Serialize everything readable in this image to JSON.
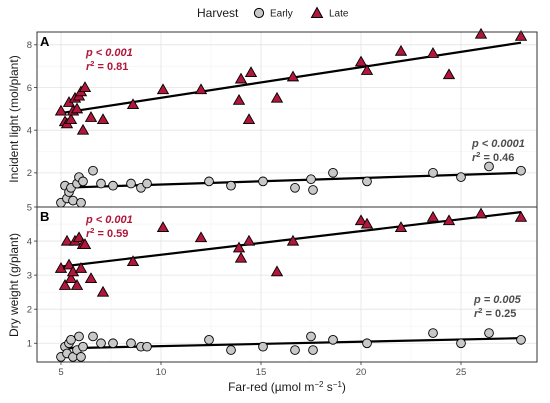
{
  "chart_data": {
    "type": "scatter",
    "legend": {
      "title": "Harvest",
      "placement": "top-center",
      "entries": [
        {
          "label": "Early",
          "shape": "circle",
          "color": "#c8c8c8"
        },
        {
          "label": "Late",
          "shape": "triangle",
          "color": "#b0173a"
        }
      ]
    },
    "xlabel_base": "Far-red (µmol m",
    "xlabel_exp1": "−2",
    "xlabel_mid": " s",
    "xlabel_exp2": "−1",
    "xlabel_end": ")",
    "xlim": [
      3.8,
      28.8
    ],
    "xticks": [
      5,
      10,
      15,
      20,
      25
    ],
    "xtick_labels": [
      "5",
      "10",
      "15",
      "20",
      "25"
    ],
    "grid": true,
    "panels": [
      {
        "tag": "A",
        "ylabel": "Incident light (mol/plant)",
        "ylim": [
          0.4,
          8.6
        ],
        "yticks": [
          2,
          4,
          6,
          8
        ],
        "ytick_labels": [
          "2",
          "4",
          "6",
          "8"
        ],
        "series": [
          {
            "name": "Early",
            "points": [
              [
                5.0,
                0.6
              ],
              [
                5.2,
                1.4
              ],
              [
                5.3,
                0.8
              ],
              [
                5.4,
                1.1
              ],
              [
                5.5,
                1.3
              ],
              [
                5.6,
                0.7
              ],
              [
                5.8,
                1.5
              ],
              [
                5.9,
                1.8
              ],
              [
                6.0,
                0.6
              ],
              [
                6.1,
                1.6
              ],
              [
                6.6,
                2.1
              ],
              [
                7.0,
                1.5
              ],
              [
                7.6,
                1.4
              ],
              [
                8.5,
                1.5
              ],
              [
                9.0,
                1.3
              ],
              [
                9.3,
                1.5
              ],
              [
                12.4,
                1.6
              ],
              [
                13.5,
                1.4
              ],
              [
                15.1,
                1.6
              ],
              [
                16.7,
                1.3
              ],
              [
                17.5,
                1.7
              ],
              [
                17.6,
                1.2
              ],
              [
                18.6,
                2.0
              ],
              [
                20.3,
                1.6
              ],
              [
                23.6,
                2.0
              ],
              [
                25.0,
                1.8
              ],
              [
                26.4,
                2.3
              ],
              [
                28.0,
                2.1
              ]
            ],
            "fit": {
              "x": [
                5.0,
                28.0
              ],
              "y": [
                1.3,
                2.0
              ]
            },
            "annotation": {
              "p": "p < 0.0001",
              "r2_prefix": "r",
              "r2_exp": "2",
              "r2_value": " = 0.46"
            }
          },
          {
            "name": "Late",
            "points": [
              [
                5.0,
                4.9
              ],
              [
                5.2,
                4.4
              ],
              [
                5.3,
                4.3
              ],
              [
                5.4,
                5.3
              ],
              [
                5.5,
                4.5
              ],
              [
                5.6,
                4.9
              ],
              [
                5.7,
                5.5
              ],
              [
                5.8,
                5.0
              ],
              [
                5.9,
                5.6
              ],
              [
                6.0,
                5.8
              ],
              [
                6.1,
                4.0
              ],
              [
                6.2,
                6.0
              ],
              [
                6.5,
                4.6
              ],
              [
                7.1,
                4.5
              ],
              [
                8.6,
                5.2
              ],
              [
                10.1,
                5.9
              ],
              [
                12.0,
                5.9
              ],
              [
                13.9,
                5.4
              ],
              [
                14.0,
                6.4
              ],
              [
                14.4,
                4.5
              ],
              [
                14.5,
                6.7
              ],
              [
                15.8,
                5.5
              ],
              [
                16.6,
                6.5
              ],
              [
                20.0,
                7.2
              ],
              [
                20.3,
                6.8
              ],
              [
                22.0,
                7.7
              ],
              [
                23.6,
                7.6
              ],
              [
                24.4,
                6.6
              ],
              [
                26.0,
                8.5
              ],
              [
                28.0,
                8.4
              ]
            ],
            "fit": {
              "x": [
                5.0,
                28.0
              ],
              "y": [
                4.8,
                8.1
              ]
            },
            "annotation": {
              "p": "p < 0.001",
              "r2_prefix": "r",
              "r2_exp": "2",
              "r2_value": " = 0.81"
            }
          }
        ]
      },
      {
        "tag": "B",
        "ylabel": "Dry weight (g/plant)",
        "ylim": [
          0.45,
          5.0
        ],
        "yticks": [
          1,
          2,
          3,
          4,
          5
        ],
        "ytick_labels": [
          "1",
          "2",
          "3",
          "4",
          "5"
        ],
        "series": [
          {
            "name": "Early",
            "points": [
              [
                5.0,
                0.6
              ],
              [
                5.2,
                0.9
              ],
              [
                5.3,
                0.7
              ],
              [
                5.4,
                1.0
              ],
              [
                5.5,
                1.1
              ],
              [
                5.6,
                0.6
              ],
              [
                5.8,
                0.8
              ],
              [
                5.9,
                1.2
              ],
              [
                6.0,
                0.6
              ],
              [
                6.1,
                0.9
              ],
              [
                6.6,
                1.2
              ],
              [
                7.0,
                1.0
              ],
              [
                7.6,
                1.0
              ],
              [
                8.5,
                1.0
              ],
              [
                9.0,
                0.9
              ],
              [
                9.3,
                0.9
              ],
              [
                12.4,
                1.1
              ],
              [
                13.5,
                0.8
              ],
              [
                15.1,
                0.9
              ],
              [
                16.7,
                0.8
              ],
              [
                17.5,
                1.2
              ],
              [
                17.6,
                0.8
              ],
              [
                18.6,
                1.1
              ],
              [
                20.3,
                1.0
              ],
              [
                23.6,
                1.3
              ],
              [
                25.0,
                1.0
              ],
              [
                26.4,
                1.3
              ],
              [
                28.0,
                1.1
              ]
            ],
            "fit": {
              "x": [
                5.0,
                28.0
              ],
              "y": [
                0.85,
                1.15
              ]
            },
            "annotation": {
              "p": "p = 0.005",
              "r2_prefix": "r",
              "r2_exp": "2",
              "r2_value": " = 0.25"
            }
          },
          {
            "name": "Late",
            "points": [
              [
                5.0,
                3.2
              ],
              [
                5.2,
                2.7
              ],
              [
                5.3,
                4.0
              ],
              [
                5.4,
                3.3
              ],
              [
                5.5,
                2.9
              ],
              [
                5.6,
                3.1
              ],
              [
                5.7,
                4.0
              ],
              [
                5.8,
                2.7
              ],
              [
                5.9,
                4.1
              ],
              [
                6.0,
                3.2
              ],
              [
                6.1,
                3.9
              ],
              [
                6.2,
                3.9
              ],
              [
                6.5,
                2.9
              ],
              [
                7.1,
                2.5
              ],
              [
                8.6,
                3.4
              ],
              [
                10.1,
                4.4
              ],
              [
                12.0,
                4.1
              ],
              [
                13.9,
                3.8
              ],
              [
                14.0,
                3.5
              ],
              [
                14.4,
                4.0
              ],
              [
                15.8,
                3.1
              ],
              [
                16.6,
                4.0
              ],
              [
                20.0,
                4.6
              ],
              [
                20.3,
                4.5
              ],
              [
                22.0,
                4.4
              ],
              [
                23.6,
                4.7
              ],
              [
                24.4,
                4.6
              ],
              [
                26.0,
                4.8
              ],
              [
                28.0,
                4.7
              ]
            ],
            "fit": {
              "x": [
                5.0,
                28.0
              ],
              "y": [
                3.25,
                4.85
              ]
            },
            "annotation": {
              "p": "p < 0.001",
              "r2_prefix": "r",
              "r2_exp": "2",
              "r2_value": " = 0.59"
            }
          }
        ]
      }
    ]
  }
}
